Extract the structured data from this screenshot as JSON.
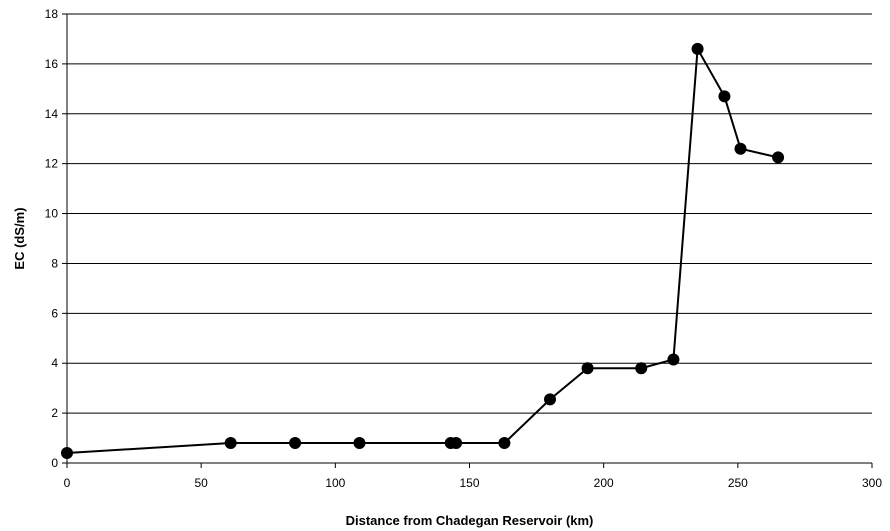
{
  "chart_data": {
    "type": "line",
    "title": "",
    "xlabel": "Distance from Chadegan Reservoir (km)",
    "ylabel": "EC (dS/m)",
    "xlim": [
      0,
      300
    ],
    "ylim": [
      0,
      18
    ],
    "xticks": [
      0,
      50,
      100,
      150,
      200,
      250,
      300
    ],
    "yticks": [
      0,
      2,
      4,
      6,
      8,
      10,
      12,
      14,
      16,
      18
    ],
    "grid": "horizontal",
    "legend": "none",
    "line_color": "#000000",
    "marker": "filled-circle",
    "series": [
      {
        "x": [
          0,
          61,
          85,
          109,
          143,
          145,
          163,
          180,
          194,
          214,
          226,
          235,
          245,
          251,
          265
        ],
        "y": [
          0.4,
          0.8,
          0.8,
          0.8,
          0.8,
          0.8,
          0.8,
          2.55,
          3.8,
          3.8,
          4.15,
          16.6,
          14.7,
          12.6,
          12.25
        ]
      }
    ]
  }
}
